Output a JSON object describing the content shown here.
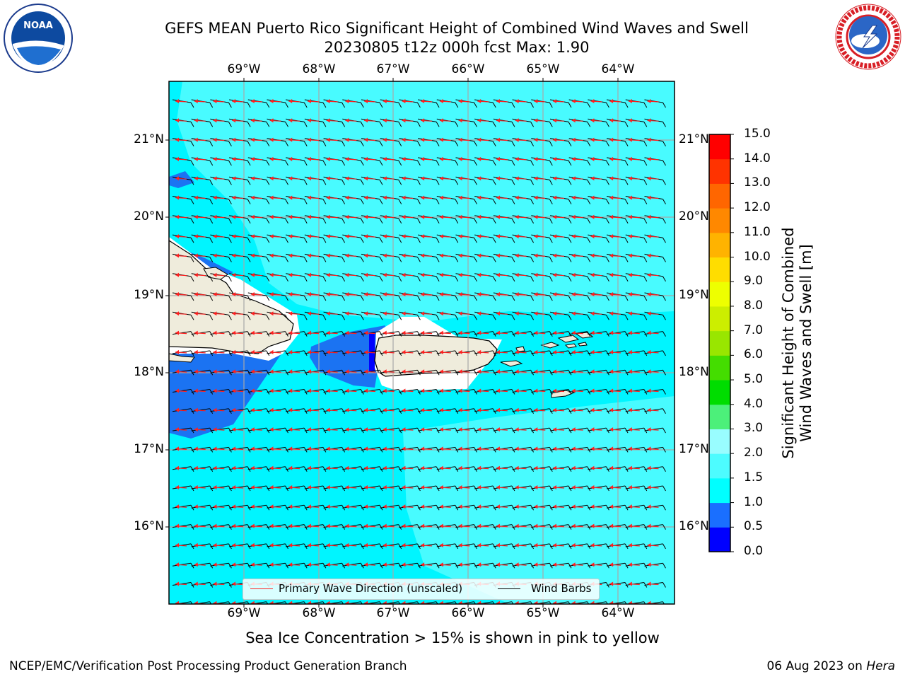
{
  "title_line1": "GEFS MEAN Puerto Rico Significant Height of Combined Wind Waves and Swell",
  "title_line2": "20230805 t12z 000h fcst   Max: 1.90",
  "logos": {
    "left": "NOAA",
    "right": "NATIONAL WEATHER SERVICE"
  },
  "lon_labels": [
    "69°W",
    "68°W",
    "67°W",
    "66°W",
    "65°W",
    "64°W"
  ],
  "lat_labels": [
    "21°N",
    "20°N",
    "19°N",
    "18°N",
    "17°N",
    "16°N"
  ],
  "legend": {
    "wave_dir": "Primary Wave Direction (unscaled)",
    "wind_barbs": "Wind Barbs"
  },
  "colorbar": {
    "label_line1": "Significant Height of Combined",
    "label_line2": "Wind Waves and Swell [m]",
    "ticks": [
      "0.0",
      "0.5",
      "1.0",
      "1.5",
      "2.0",
      "3.0",
      "4.0",
      "5.0",
      "6.0",
      "7.0",
      "8.0",
      "9.0",
      "10.0",
      "11.0",
      "12.0",
      "13.0",
      "14.0",
      "15.0"
    ],
    "colors": [
      "#0000ff",
      "#1a6fff",
      "#00ffff",
      "#4dfcff",
      "#99fdff",
      "#4cf07a",
      "#00dd00",
      "#44dd00",
      "#99e600",
      "#ccee00",
      "#eeff00",
      "#ffdd00",
      "#ffb300",
      "#ff8800",
      "#ff6600",
      "#ff3300",
      "#ff0000"
    ]
  },
  "colors": {
    "land": "#efecdc",
    "sea_low": "#00f5ff",
    "sea_mid": "#48fbff",
    "sea_dip": "#1b73f2",
    "wave_arrow": "#ff2020",
    "barb": "#000000"
  },
  "caption": "Sea Ice Concentration > 15% is shown in pink to yellow",
  "footer_left": "NCEP/EMC/Verification Post Processing Product Generation Branch",
  "footer_date": "06 Aug 2023 on",
  "footer_machine": "Hera"
}
